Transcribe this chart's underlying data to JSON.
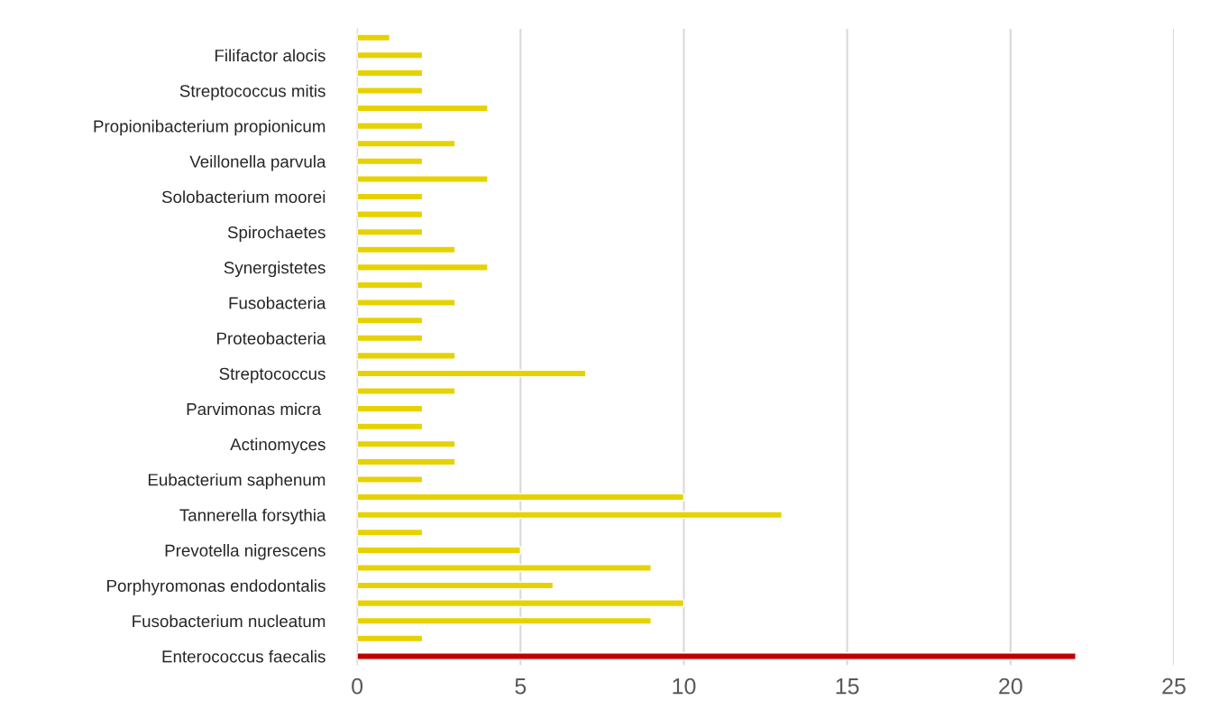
{
  "chart_data": {
    "type": "bar",
    "orientation": "horizontal",
    "categories": [
      null,
      "Filifactor alocis",
      null,
      "Streptococcus mitis",
      null,
      "Propionibacterium propionicum",
      null,
      "Veillonella parvula",
      null,
      "Solobacterium moorei",
      null,
      "Spirochaetes",
      null,
      "Synergistetes",
      null,
      "Fusobacteria",
      null,
      "Proteobacteria",
      null,
      "Streptococcus",
      null,
      "Parvimonas micra ",
      null,
      "Actinomyces",
      null,
      "Eubacterium saphenum",
      null,
      "Tannerella forsythia",
      null,
      "Prevotella nigrescens",
      null,
      "Porphyromonas endodontalis",
      null,
      "Fusobacterium nucleatum",
      null,
      "Enterococcus faecalis"
    ],
    "values": [
      1,
      2,
      2,
      2,
      4,
      2,
      3,
      2,
      4,
      2,
      2,
      2,
      3,
      4,
      2,
      3,
      2,
      2,
      3,
      7,
      3,
      2,
      2,
      3,
      3,
      2,
      10,
      13,
      2,
      5,
      9,
      6,
      10,
      9,
      2,
      22
    ],
    "colors": [
      "#e6d200",
      "#e6d200",
      "#e6d200",
      "#e6d200",
      "#e6d200",
      "#e6d200",
      "#e6d200",
      "#e6d200",
      "#e6d200",
      "#e6d200",
      "#e6d200",
      "#e6d200",
      "#e6d200",
      "#e6d200",
      "#e6d200",
      "#e6d200",
      "#e6d200",
      "#e6d200",
      "#e6d200",
      "#e6d200",
      "#e6d200",
      "#e6d200",
      "#e6d200",
      "#e6d200",
      "#e6d200",
      "#e6d200",
      "#e6d200",
      "#e6d200",
      "#e6d200",
      "#e6d200",
      "#e6d200",
      "#e6d200",
      "#e6d200",
      "#e6d200",
      "#e6d200",
      "#c00000"
    ],
    "xlim": [
      0,
      25
    ],
    "xticks": [
      0,
      5,
      10,
      15,
      20,
      25
    ],
    "grid": "x",
    "legend": false
  }
}
